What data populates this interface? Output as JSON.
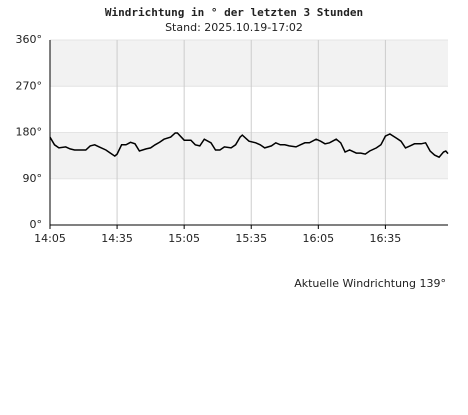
{
  "chart_data": {
    "type": "line",
    "title": "Windrichtung in ° der letzten 3 Stunden",
    "subtitle": "Stand: 2025.10.19-17:02",
    "annotation": "Aktuelle Windrichtung 139°",
    "x": [
      0,
      2,
      4,
      7,
      9,
      11,
      16,
      18,
      20,
      22,
      25,
      27,
      29,
      30,
      32,
      34,
      36,
      38,
      40,
      43,
      45,
      47,
      49,
      51,
      54,
      56,
      57,
      60,
      63,
      65,
      67,
      69,
      72,
      74,
      76,
      78,
      81,
      83,
      85,
      86,
      89,
      92,
      94,
      96,
      99,
      101,
      103,
      105,
      107,
      110,
      112,
      114,
      116,
      119,
      121,
      123,
      125,
      128,
      130,
      132,
      134,
      137,
      139,
      141,
      143,
      146,
      148,
      150,
      152,
      155,
      157,
      159,
      161,
      163,
      166,
      168,
      170,
      172,
      174,
      176,
      177,
      178
    ],
    "series": [
      {
        "color": "#000000",
        "values": [
          171,
          156,
          150,
          152,
          148,
          146,
          146,
          154,
          156,
          152,
          146,
          140,
          134,
          138,
          156,
          156,
          161,
          158,
          144,
          148,
          150,
          156,
          161,
          167,
          171,
          179,
          179,
          165,
          165,
          156,
          154,
          167,
          160,
          146,
          146,
          152,
          150,
          156,
          171,
          175,
          163,
          160,
          156,
          150,
          154,
          160,
          156,
          156,
          154,
          152,
          156,
          160,
          160,
          167,
          163,
          158,
          160,
          167,
          160,
          142,
          146,
          140,
          140,
          138,
          144,
          150,
          156,
          173,
          177,
          169,
          163,
          150,
          154,
          158,
          158,
          160,
          144,
          136,
          132,
          142,
          144,
          139
        ]
      }
    ],
    "xlim": [
      0,
      178
    ],
    "xticks": [
      {
        "value": 0,
        "label": "14:05"
      },
      {
        "value": 30,
        "label": "14:35"
      },
      {
        "value": 60,
        "label": "15:05"
      },
      {
        "value": 90,
        "label": "15:35"
      },
      {
        "value": 120,
        "label": "16:05"
      },
      {
        "value": 150,
        "label": "16:35"
      }
    ],
    "ylim": [
      0,
      360
    ],
    "yticks": [
      {
        "value": 0,
        "label": "0°"
      },
      {
        "value": 90,
        "label": "90°"
      },
      {
        "value": 180,
        "label": "180°"
      },
      {
        "value": 270,
        "label": "270°"
      },
      {
        "value": 360,
        "label": "360°"
      }
    ],
    "shaded_bands": [
      [
        90,
        180
      ],
      [
        270,
        360
      ]
    ],
    "grid": true
  }
}
